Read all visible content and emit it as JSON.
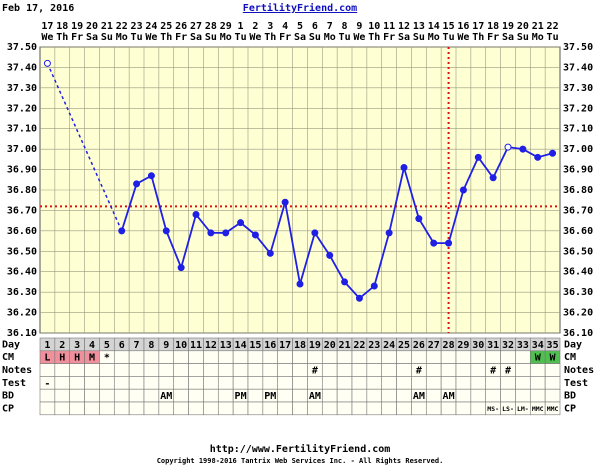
{
  "chart_data": {
    "type": "line",
    "date": "Feb 17, 2016",
    "site": "FertilityFriend.com",
    "categories": [
      "17",
      "18",
      "19",
      "20",
      "21",
      "22",
      "23",
      "24",
      "25",
      "26",
      "27",
      "28",
      "29",
      "1",
      "2",
      "3",
      "4",
      "5",
      "6",
      "7",
      "8",
      "9",
      "10",
      "11",
      "12",
      "13",
      "14",
      "15",
      "16",
      "17",
      "18",
      "19",
      "20",
      "21",
      "22"
    ],
    "weekdays": [
      "We",
      "Th",
      "Fr",
      "Sa",
      "Su",
      "Mo",
      "Tu",
      "We",
      "Th",
      "Fr",
      "Sa",
      "Su",
      "Mo",
      "Tu",
      "We",
      "Th",
      "Fr",
      "Sa",
      "Su",
      "Mo",
      "Tu",
      "We",
      "Th",
      "Fr",
      "Sa",
      "Su",
      "Mo",
      "Tu",
      "We",
      "Th",
      "Fr",
      "Sa",
      "Su",
      "Mo",
      "Tu"
    ],
    "values": [
      37.42,
      null,
      null,
      null,
      null,
      36.6,
      36.83,
      36.87,
      36.6,
      36.42,
      36.68,
      36.59,
      36.59,
      36.64,
      36.58,
      36.49,
      36.74,
      36.34,
      36.59,
      36.48,
      36.35,
      36.27,
      36.33,
      36.59,
      36.91,
      36.66,
      36.54,
      36.54,
      36.8,
      36.96,
      36.86,
      37.01,
      37.0,
      36.96,
      36.98
    ],
    "hollow_points": [
      0,
      31
    ],
    "color": "#1f1fe6",
    "coverline": 36.72,
    "ovulation_day": 28,
    "marker_color": "#e01010",
    "ylim": [
      36.1,
      37.5
    ],
    "yticks": [
      {
        "value": 37.5,
        "label": "37.50"
      },
      {
        "value": 37.4,
        "label": "37.40"
      },
      {
        "value": 37.3,
        "label": "37.30"
      },
      {
        "value": 37.2,
        "label": "37.20"
      },
      {
        "value": 37.1,
        "label": "37.10"
      },
      {
        "value": 37.0,
        "label": "37.00"
      },
      {
        "value": 36.9,
        "label": "36.90"
      },
      {
        "value": 36.8,
        "label": "36.80"
      },
      {
        "value": 36.7,
        "label": "36.70"
      },
      {
        "value": 36.6,
        "label": "36.60"
      },
      {
        "value": 36.5,
        "label": "36.50"
      },
      {
        "value": 36.4,
        "label": "36.40"
      },
      {
        "value": 36.3,
        "label": "36.30"
      },
      {
        "value": 36.2,
        "label": "36.20"
      },
      {
        "value": 36.1,
        "label": "36.10"
      }
    ],
    "grid": true,
    "table": {
      "rows": [
        {
          "label": "Day",
          "cells": [
            1,
            2,
            3,
            4,
            5,
            6,
            7,
            8,
            9,
            10,
            11,
            12,
            13,
            14,
            15,
            16,
            17,
            18,
            19,
            20,
            21,
            22,
            23,
            24,
            25,
            26,
            27,
            28,
            29,
            30,
            31,
            32,
            33,
            34,
            35
          ],
          "fill": "#d4d4d4"
        },
        {
          "label": "CM",
          "cells": {
            "0": "L",
            "1": "H",
            "2": "H",
            "3": "M",
            "4": "*",
            "33": "W",
            "34": "W"
          },
          "fills": {
            "0": "#f0909c",
            "1": "#f0909c",
            "2": "#f0909c",
            "3": "#f0909c",
            "33": "#4fbf4f",
            "34": "#4fbf4f"
          }
        },
        {
          "label": "Notes",
          "cells": {
            "18": "#",
            "25": "#",
            "30": "#",
            "31": "#"
          }
        },
        {
          "label": "Test",
          "cells": {
            "0": "-"
          }
        },
        {
          "label": "BD",
          "cells": {
            "8": "AM",
            "13": "PM",
            "15": "PM",
            "18": "AM",
            "25": "AM",
            "27": "AM"
          }
        },
        {
          "label": "CP",
          "cells": {
            "30": "MS-",
            "31": "LS-",
            "32": "LM-",
            "33": "MMC",
            "34": "MMC"
          }
        }
      ]
    },
    "footer_url": "http://www.FertilityFriend.com",
    "copyright": "Copyright 1998-2016 Tantrix Web Services Inc. - All Rights Reserved."
  }
}
